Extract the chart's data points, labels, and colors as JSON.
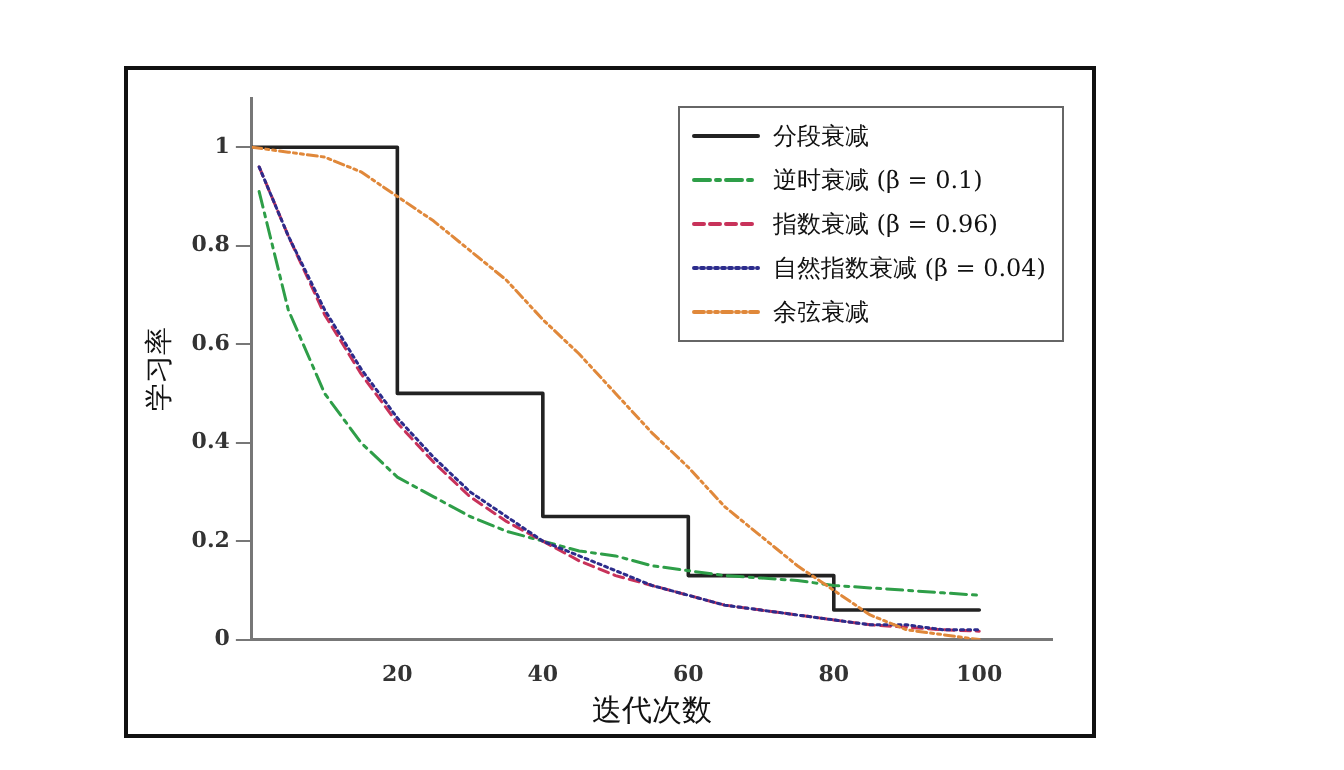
{
  "chart_data": {
    "type": "line",
    "xlabel": "迭代次数",
    "ylabel": "学习率",
    "xlim": [
      0,
      110
    ],
    "xticks": [
      20,
      40,
      60,
      80,
      100
    ],
    "ylim": [
      0,
      1.1
    ],
    "yticks": [
      0,
      0.2,
      0.4,
      0.6,
      0.8,
      1
    ],
    "grid": false,
    "legend": "top right",
    "marker": "none",
    "series": [
      {
        "name": "分段衰减",
        "type": "step",
        "color": "#222222",
        "line_style": "solid",
        "x": [
          0,
          20,
          40,
          60,
          80,
          100
        ],
        "values": [
          1,
          0.5,
          0.25,
          0.13,
          0.06,
          0.06
        ]
      },
      {
        "name": "逆时衰减 (β = 0.1)",
        "color": "#2e9e48",
        "line_style": "dashdot",
        "x": [
          1,
          5,
          10,
          15,
          20,
          25,
          30,
          35,
          40,
          45,
          50,
          55,
          60,
          65,
          70,
          75,
          80,
          85,
          90,
          95,
          100
        ],
        "values": [
          0.91,
          0.67,
          0.5,
          0.4,
          0.33,
          0.29,
          0.25,
          0.22,
          0.2,
          0.18,
          0.17,
          0.15,
          0.14,
          0.13,
          0.125,
          0.12,
          0.11,
          0.105,
          0.1,
          0.095,
          0.09
        ]
      },
      {
        "name": "指数衰减 (β = 0.96)",
        "color": "#c8325a",
        "line_style": "dashed",
        "x": [
          1,
          5,
          10,
          15,
          20,
          25,
          30,
          35,
          40,
          45,
          50,
          55,
          60,
          65,
          70,
          75,
          80,
          85,
          90,
          95,
          100
        ],
        "values": [
          0.96,
          0.82,
          0.66,
          0.54,
          0.44,
          0.36,
          0.29,
          0.24,
          0.2,
          0.16,
          0.13,
          0.11,
          0.09,
          0.07,
          0.06,
          0.05,
          0.04,
          0.03,
          0.025,
          0.02,
          0.017
        ]
      },
      {
        "name": "自然指数衰减 (β = 0.04)",
        "color": "#2c2c8c",
        "line_style": "dotted",
        "x": [
          1,
          5,
          10,
          15,
          20,
          25,
          30,
          35,
          40,
          45,
          50,
          55,
          60,
          65,
          70,
          75,
          80,
          85,
          90,
          95,
          100
        ],
        "values": [
          0.96,
          0.82,
          0.67,
          0.55,
          0.45,
          0.37,
          0.3,
          0.25,
          0.2,
          0.17,
          0.14,
          0.11,
          0.09,
          0.07,
          0.06,
          0.05,
          0.04,
          0.03,
          0.03,
          0.02,
          0.02
        ]
      },
      {
        "name": "余弦衰减",
        "color": "#e0883a",
        "line_style": "dashdotdot",
        "x": [
          0,
          5,
          10,
          15,
          20,
          25,
          30,
          35,
          40,
          45,
          50,
          55,
          60,
          65,
          70,
          75,
          80,
          85,
          90,
          95,
          100
        ],
        "values": [
          1,
          0.99,
          0.98,
          0.95,
          0.9,
          0.85,
          0.79,
          0.73,
          0.65,
          0.58,
          0.5,
          0.42,
          0.35,
          0.27,
          0.21,
          0.15,
          0.1,
          0.05,
          0.02,
          0.01,
          0
        ]
      }
    ]
  }
}
